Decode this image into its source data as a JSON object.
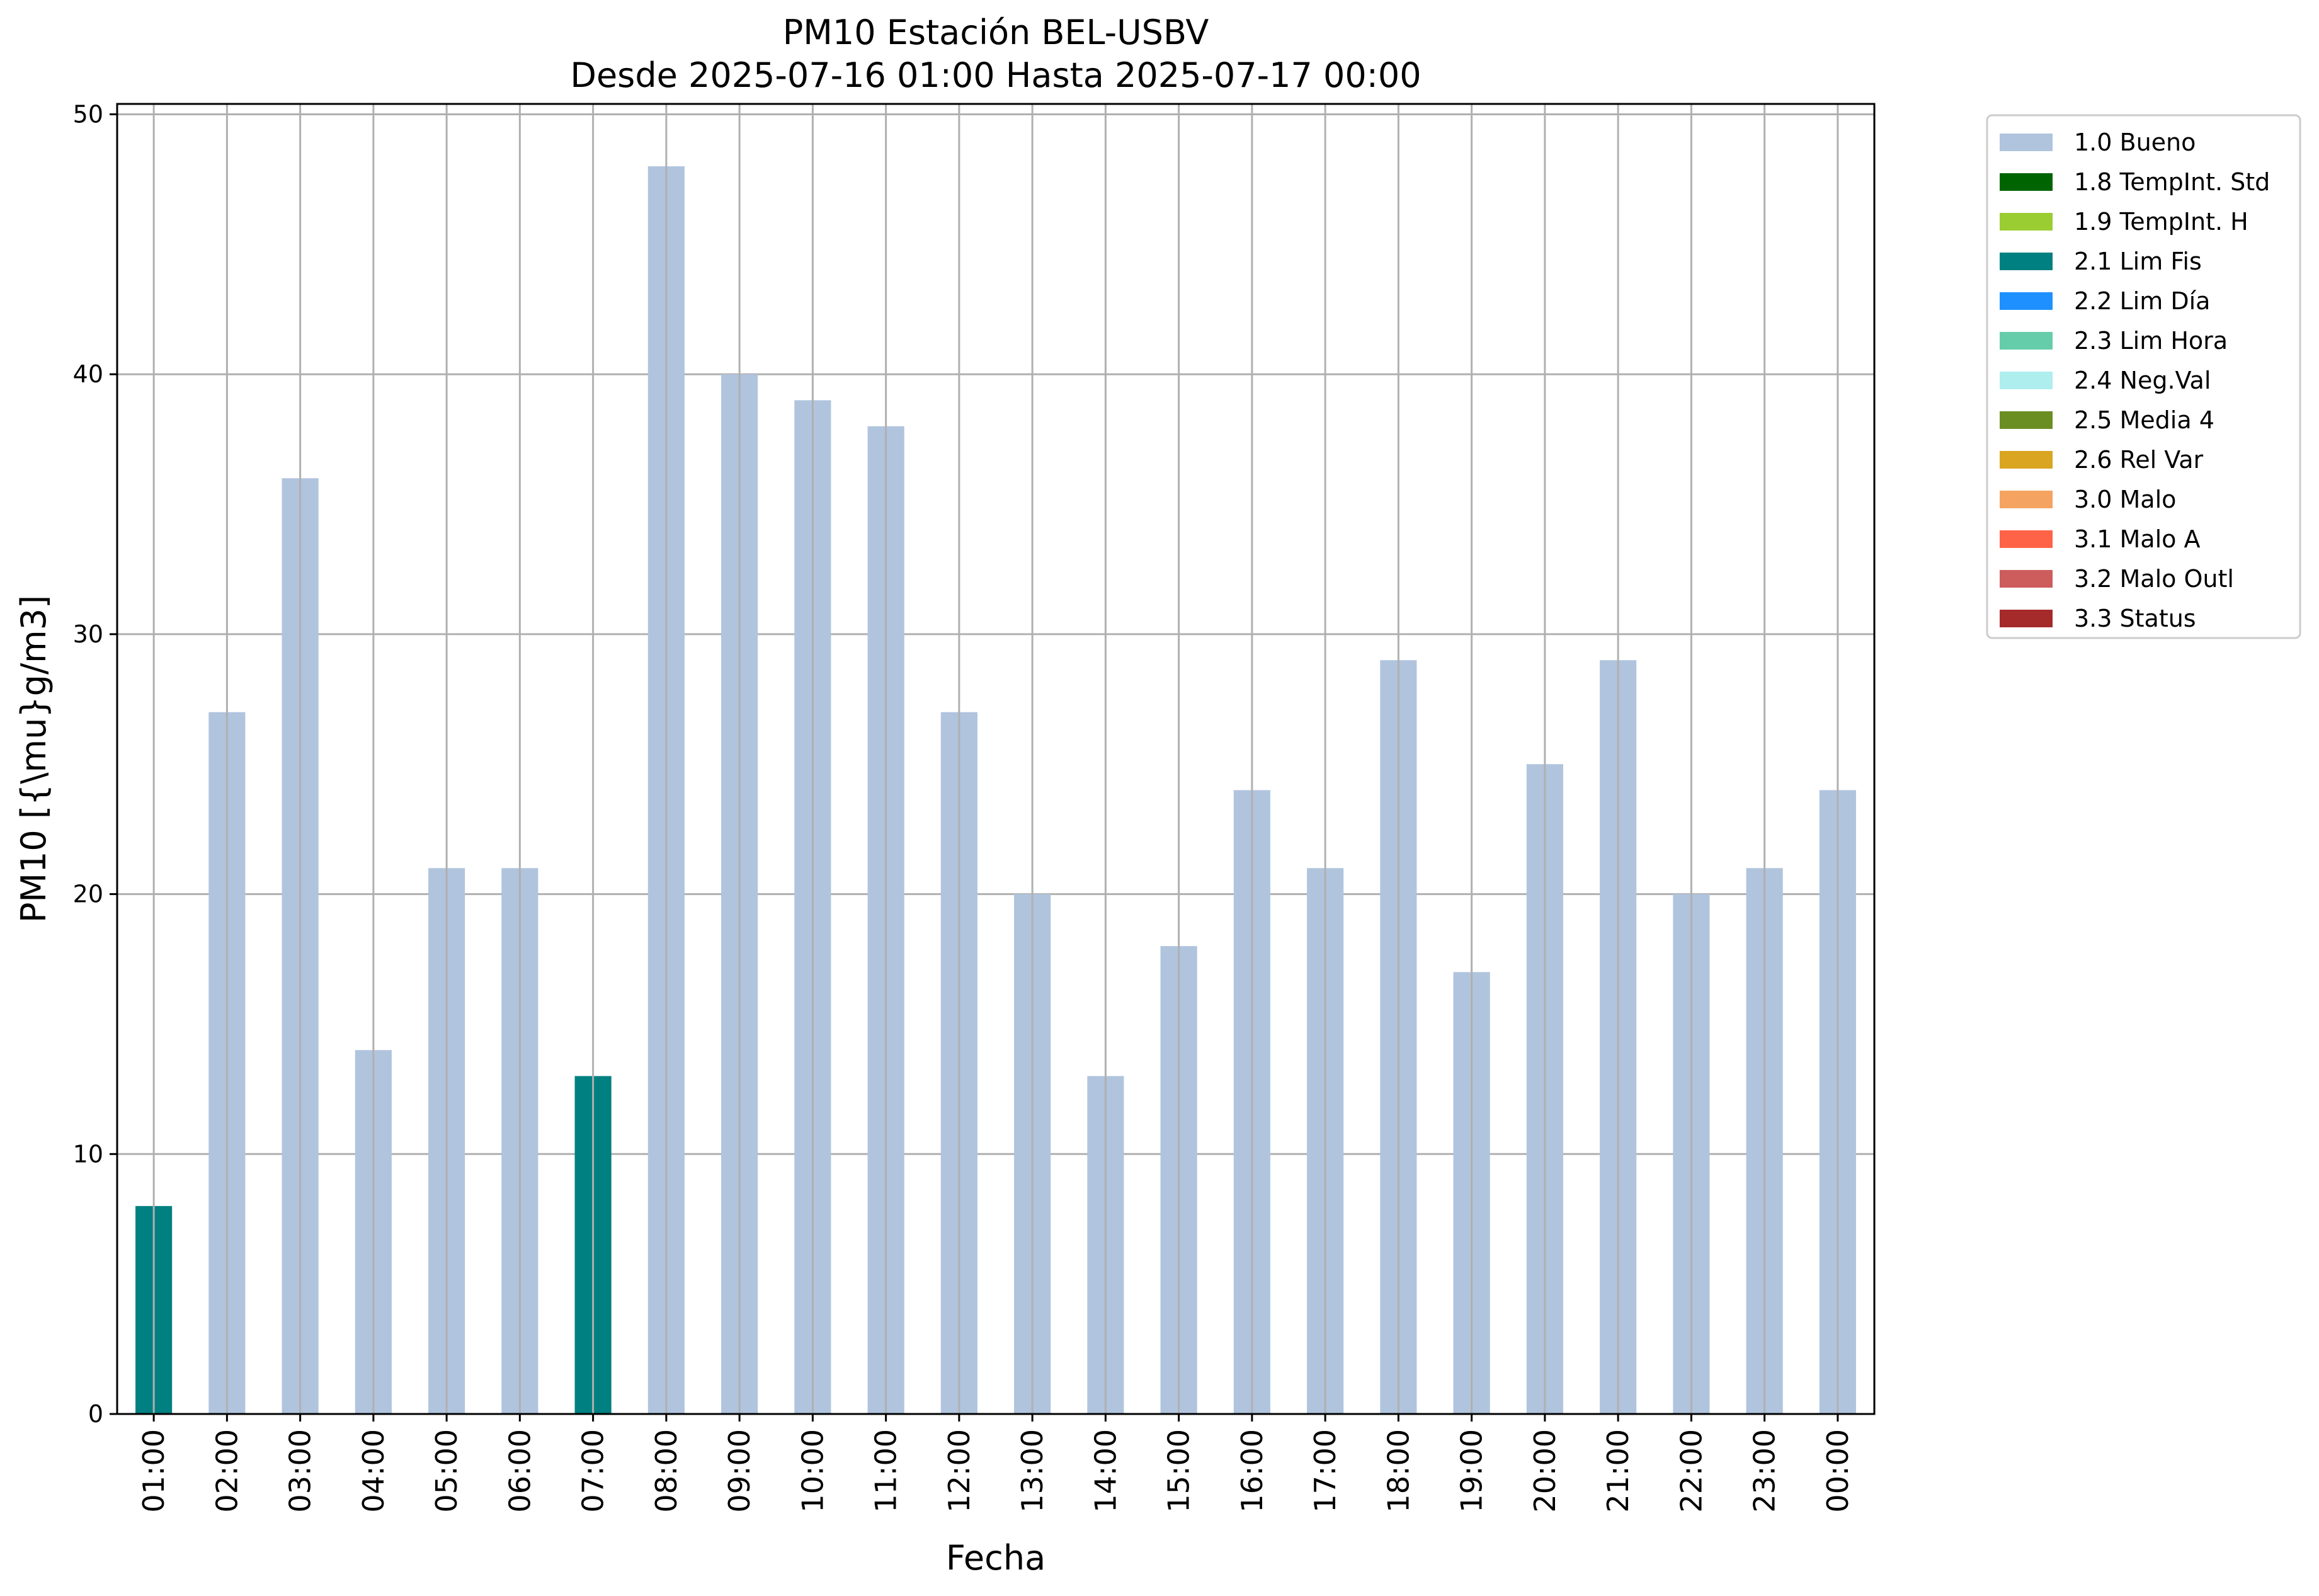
{
  "chart_data": {
    "type": "bar",
    "title": "PM10 Estación BEL-USBV",
    "subtitle": "Desde 2025-07-16 01:00 Hasta 2025-07-17 00:00",
    "xlabel": "Fecha",
    "ylabel": "PM10 [{\\mu}g/m3]",
    "ylim": [
      0,
      50.4
    ],
    "yticks": [
      0,
      10,
      20,
      30,
      40,
      50
    ],
    "grid": true,
    "legend_position": "outside-top-right",
    "categories": [
      "01:00",
      "02:00",
      "03:00",
      "04:00",
      "05:00",
      "06:00",
      "07:00",
      "08:00",
      "09:00",
      "10:00",
      "11:00",
      "12:00",
      "13:00",
      "14:00",
      "15:00",
      "16:00",
      "17:00",
      "18:00",
      "19:00",
      "20:00",
      "21:00",
      "22:00",
      "23:00",
      "00:00"
    ],
    "values": [
      8,
      27,
      36,
      14,
      21,
      21,
      13,
      48,
      40,
      39,
      38,
      27,
      20,
      13,
      18,
      24,
      21,
      29,
      17,
      25,
      29,
      20,
      21,
      24
    ],
    "flags": [
      "2.1 Lim Fis",
      "1.0 Bueno",
      "1.0 Bueno",
      "1.0 Bueno",
      "1.0 Bueno",
      "1.0 Bueno",
      "2.1 Lim Fis",
      "1.0 Bueno",
      "1.0 Bueno",
      "1.0 Bueno",
      "1.0 Bueno",
      "1.0 Bueno",
      "1.0 Bueno",
      "1.0 Bueno",
      "1.0 Bueno",
      "1.0 Bueno",
      "1.0 Bueno",
      "1.0 Bueno",
      "1.0 Bueno",
      "1.0 Bueno",
      "1.0 Bueno",
      "1.0 Bueno",
      "1.0 Bueno",
      "1.0 Bueno"
    ],
    "legend": [
      {
        "name": "1.0 Bueno",
        "color": "#b0c4de"
      },
      {
        "name": "1.8 TempInt. Std",
        "color": "#006400"
      },
      {
        "name": "1.9 TempInt. H",
        "color": "#9acd32"
      },
      {
        "name": "2.1 Lim Fis",
        "color": "#008080"
      },
      {
        "name": "2.2 Lim Día",
        "color": "#1e90ff"
      },
      {
        "name": "2.3 Lim Hora",
        "color": "#66cdaa"
      },
      {
        "name": "2.4 Neg.Val",
        "color": "#afeeee"
      },
      {
        "name": "2.5 Media 4",
        "color": "#6b8e23"
      },
      {
        "name": "2.6 Rel Var",
        "color": "#daa520"
      },
      {
        "name": "3.0 Malo",
        "color": "#f4a460"
      },
      {
        "name": "3.1 Malo A",
        "color": "#ff6347"
      },
      {
        "name": "3.2 Malo Outl",
        "color": "#cd5c5c"
      },
      {
        "name": "3.3 Status",
        "color": "#a52a2a"
      }
    ]
  }
}
